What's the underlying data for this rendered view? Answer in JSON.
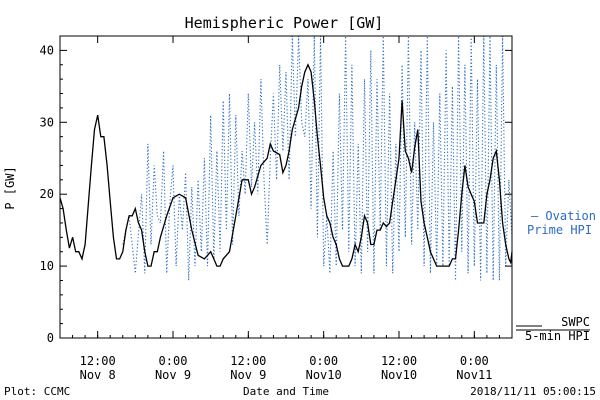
{
  "chart_data": {
    "type": "line",
    "title": "Hemispheric Power [GW]",
    "xlabel": "Date and Time",
    "ylabel": "P [GW]",
    "ylim": [
      0,
      42
    ],
    "yticks": [
      0,
      10,
      20,
      30,
      40
    ],
    "xlim_hours": [
      0,
      72
    ],
    "x_unit": "hours after 2018/11/08 06:00 UT",
    "xticks": [
      {
        "x": 6,
        "line1": "12:00",
        "line2": "Nov 8"
      },
      {
        "x": 18,
        "line1": "0:00",
        "line2": "Nov 9"
      },
      {
        "x": 30,
        "line1": "12:00",
        "line2": "Nov 9"
      },
      {
        "x": 42,
        "line1": "0:00",
        "line2": "Nov10"
      },
      {
        "x": 54,
        "line1": "12:00",
        "line2": "Nov10"
      },
      {
        "x": 66,
        "line1": "0:00",
        "line2": "Nov11"
      }
    ],
    "grid": false,
    "series": [
      {
        "name": "SWPC 5-min HPI",
        "color": "#000000",
        "style": "solid",
        "points": [
          [
            0,
            19.5
          ],
          [
            0.5,
            18
          ],
          [
            1,
            15
          ],
          [
            1.5,
            12.5
          ],
          [
            2,
            14
          ],
          [
            2.5,
            12
          ],
          [
            3,
            12
          ],
          [
            3.5,
            11
          ],
          [
            4,
            13
          ],
          [
            5,
            24
          ],
          [
            5.5,
            29
          ],
          [
            6,
            31
          ],
          [
            6.5,
            28
          ],
          [
            7,
            28
          ],
          [
            7.5,
            24
          ],
          [
            8,
            19
          ],
          [
            8.5,
            14
          ],
          [
            9,
            11
          ],
          [
            9.5,
            11
          ],
          [
            10,
            12
          ],
          [
            10.5,
            15
          ],
          [
            11,
            17
          ],
          [
            11.5,
            17
          ],
          [
            12,
            18
          ],
          [
            12.5,
            16
          ],
          [
            13,
            15
          ],
          [
            13.5,
            12
          ],
          [
            14,
            10
          ],
          [
            14.5,
            10
          ],
          [
            15,
            12
          ],
          [
            15.5,
            12
          ],
          [
            16,
            14
          ],
          [
            17,
            17
          ],
          [
            18,
            19.5
          ],
          [
            19,
            20
          ],
          [
            20,
            19.5
          ],
          [
            21,
            15
          ],
          [
            22,
            11.5
          ],
          [
            23,
            11
          ],
          [
            24,
            12
          ],
          [
            24.5,
            11
          ],
          [
            25,
            10
          ],
          [
            25.5,
            10
          ],
          [
            26,
            11
          ],
          [
            27,
            12
          ],
          [
            28,
            17
          ],
          [
            29,
            22
          ],
          [
            30,
            22
          ],
          [
            30.5,
            20
          ],
          [
            31,
            21
          ],
          [
            32,
            24
          ],
          [
            33,
            25
          ],
          [
            33.5,
            27
          ],
          [
            34,
            26
          ],
          [
            35,
            25.5
          ],
          [
            35.5,
            23
          ],
          [
            36,
            24
          ],
          [
            36.5,
            26
          ],
          [
            37,
            29
          ],
          [
            38,
            32
          ],
          [
            38.5,
            35
          ],
          [
            39,
            37
          ],
          [
            39.5,
            38
          ],
          [
            40,
            37
          ],
          [
            40.5,
            33
          ],
          [
            41,
            28
          ],
          [
            41.5,
            24
          ],
          [
            42,
            19.5
          ],
          [
            42.5,
            17
          ],
          [
            43,
            16
          ],
          [
            43.5,
            14
          ],
          [
            44,
            13
          ],
          [
            44.5,
            11
          ],
          [
            45,
            10
          ],
          [
            46,
            10
          ],
          [
            46.5,
            11
          ],
          [
            47,
            13
          ],
          [
            47.5,
            12
          ],
          [
            48,
            14
          ],
          [
            48.5,
            17
          ],
          [
            49,
            16
          ],
          [
            49.5,
            13
          ],
          [
            50,
            13
          ],
          [
            50.5,
            15
          ],
          [
            51,
            15
          ],
          [
            51.5,
            16
          ],
          [
            52,
            15.5
          ],
          [
            52.5,
            16
          ],
          [
            53,
            19
          ],
          [
            53.5,
            22
          ],
          [
            54,
            25
          ],
          [
            54.5,
            33
          ],
          [
            55,
            26
          ],
          [
            55.5,
            25
          ],
          [
            56,
            23
          ],
          [
            56.5,
            26.5
          ],
          [
            57,
            29
          ],
          [
            57.5,
            19
          ],
          [
            58,
            16
          ],
          [
            58.5,
            14
          ],
          [
            59,
            12
          ],
          [
            59.5,
            11
          ],
          [
            60,
            10
          ],
          [
            61,
            10
          ],
          [
            62,
            10
          ],
          [
            62.5,
            11
          ],
          [
            63,
            11
          ],
          [
            63.5,
            15
          ],
          [
            64,
            20
          ],
          [
            64.5,
            24
          ],
          [
            65,
            21
          ],
          [
            65.5,
            20
          ],
          [
            66,
            19
          ],
          [
            66.5,
            16
          ],
          [
            67,
            16
          ],
          [
            67.5,
            16
          ],
          [
            68,
            20
          ],
          [
            68.5,
            22
          ],
          [
            69,
            25
          ],
          [
            69.5,
            26
          ],
          [
            70,
            22
          ],
          [
            70.5,
            16
          ],
          [
            71,
            13
          ],
          [
            71.5,
            11
          ],
          [
            71.8,
            10.5
          ],
          [
            72,
            12
          ]
        ]
      },
      {
        "name": "Ovation Prime HPI",
        "color": "#2b6cc4",
        "style": "dotted",
        "points": [
          [
            10,
            13
          ],
          [
            11,
            17
          ],
          [
            12,
            9
          ],
          [
            13,
            20
          ],
          [
            13.5,
            9
          ],
          [
            14,
            27
          ],
          [
            14.5,
            13
          ],
          [
            15,
            24
          ],
          [
            15.5,
            17
          ],
          [
            16,
            16
          ],
          [
            16.5,
            26
          ],
          [
            17,
            9
          ],
          [
            17.5,
            19
          ],
          [
            18,
            24
          ],
          [
            18.5,
            10
          ],
          [
            19,
            20
          ],
          [
            19.5,
            15
          ],
          [
            20,
            23
          ],
          [
            20.5,
            8
          ],
          [
            21,
            21
          ],
          [
            21.5,
            10
          ],
          [
            22,
            22
          ],
          [
            22.5,
            12
          ],
          [
            23,
            25
          ],
          [
            23.5,
            10
          ],
          [
            24,
            31
          ],
          [
            24.5,
            11
          ],
          [
            25,
            26
          ],
          [
            25.5,
            12
          ],
          [
            26,
            33
          ],
          [
            26.5,
            15
          ],
          [
            27,
            34
          ],
          [
            27.5,
            13
          ],
          [
            28,
            31
          ],
          [
            28.5,
            17
          ],
          [
            29,
            26
          ],
          [
            29.5,
            20
          ],
          [
            30,
            34
          ],
          [
            30.5,
            21
          ],
          [
            31,
            30
          ],
          [
            31.5,
            20
          ],
          [
            32,
            36
          ],
          [
            32.5,
            22
          ],
          [
            33,
            13
          ],
          [
            33.5,
            25
          ],
          [
            34,
            34
          ],
          [
            34.5,
            22
          ],
          [
            35,
            38
          ],
          [
            35.5,
            26
          ],
          [
            36,
            37
          ],
          [
            36.5,
            22
          ],
          [
            37,
            42
          ],
          [
            37.5,
            28
          ],
          [
            38,
            42
          ],
          [
            38.5,
            30
          ],
          [
            39,
            28
          ],
          [
            39.5,
            36
          ],
          [
            40,
            18
          ],
          [
            40.5,
            42
          ],
          [
            41,
            14
          ],
          [
            41.5,
            42
          ],
          [
            42,
            10
          ],
          [
            42.5,
            17
          ],
          [
            43,
            9
          ],
          [
            43.5,
            26
          ],
          [
            44,
            10
          ],
          [
            44.5,
            34
          ],
          [
            45,
            15
          ],
          [
            45.5,
            42
          ],
          [
            46,
            12
          ],
          [
            46.5,
            38
          ],
          [
            47,
            10
          ],
          [
            47.5,
            27
          ],
          [
            48,
            9
          ],
          [
            48.5,
            36
          ],
          [
            49,
            12
          ],
          [
            49.5,
            40
          ],
          [
            50,
            9
          ],
          [
            50.5,
            36
          ],
          [
            51,
            15
          ],
          [
            51.5,
            42
          ],
          [
            52,
            10
          ],
          [
            52.5,
            34
          ],
          [
            53,
            9
          ],
          [
            53.5,
            27
          ],
          [
            54,
            12
          ],
          [
            54.5,
            38
          ],
          [
            55,
            14
          ],
          [
            55.5,
            42
          ],
          [
            56,
            13
          ],
          [
            56.5,
            30
          ],
          [
            57,
            15
          ],
          [
            57.5,
            40
          ],
          [
            58,
            10
          ],
          [
            58.5,
            42
          ],
          [
            59,
            9
          ],
          [
            59.5,
            30
          ],
          [
            60,
            10
          ],
          [
            60.5,
            34
          ],
          [
            61,
            10
          ],
          [
            61.5,
            40
          ],
          [
            62,
            10
          ],
          [
            62.5,
            35
          ],
          [
            63,
            8
          ],
          [
            63.5,
            42
          ],
          [
            64,
            12
          ],
          [
            64.5,
            38
          ],
          [
            65,
            9
          ],
          [
            65.5,
            42
          ],
          [
            66,
            10
          ],
          [
            66.5,
            36
          ],
          [
            67,
            8
          ],
          [
            67.5,
            42
          ],
          [
            68,
            9
          ],
          [
            68.5,
            42
          ],
          [
            69,
            8
          ],
          [
            69.5,
            38
          ],
          [
            70,
            8
          ],
          [
            70.5,
            42
          ],
          [
            71,
            10
          ],
          [
            71.5,
            22
          ],
          [
            72,
            14
          ]
        ]
      }
    ]
  },
  "legend": {
    "ovation_line1": "— Ovation",
    "ovation_line2": "Prime HPI",
    "swpc_line1": "SWPC",
    "swpc_line2": "5-min HPI"
  },
  "footer": {
    "left": "Plot: CCMC",
    "right": "2018/11/11 05:00:15"
  }
}
